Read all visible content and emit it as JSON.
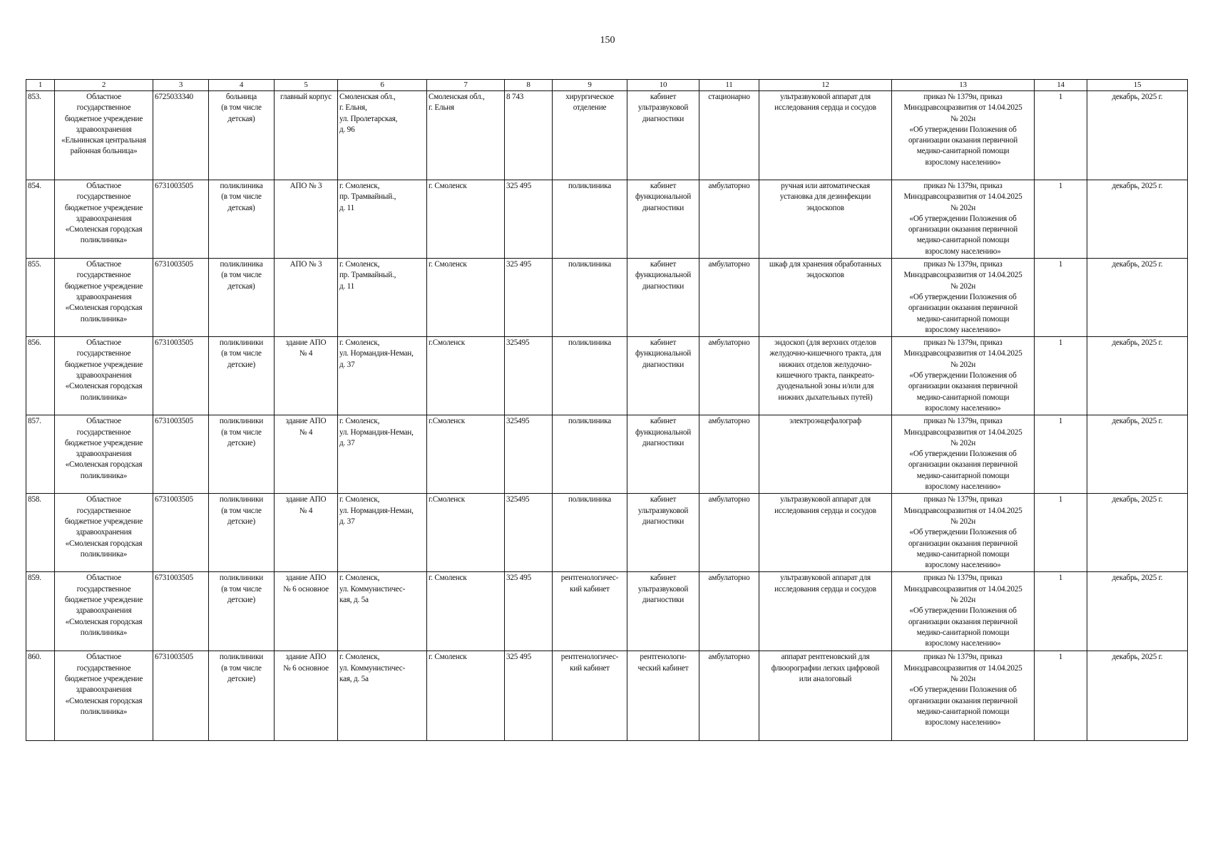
{
  "page_number": "150",
  "columns": [
    "1",
    "2",
    "3",
    "4",
    "5",
    "6",
    "7",
    "8",
    "9",
    "10",
    "11",
    "12",
    "13",
    "14",
    "15"
  ],
  "rows": [
    [
      "853.",
      "Областное\nгосударственное\nбюджетное учреждение\nздравоохранения\n«Ельнинская центральная\nрайонная больница»",
      "6725033340",
      "больница\n(в том числе\nдетская)",
      "главный корпус",
      "Смоленская обл.,\nг. Ельня,\nул. Пролетарская,\nд. 96",
      "Смоленская обл.,\nг. Ельня",
      "8 743",
      "хирургическое\nотделение",
      "кабинет\nультразвуковой\nдиагностики",
      "стационарно",
      "ультразвуковой аппарат для\nисследования сердца и сосудов",
      "приказ № 1379н, приказ\nМинздравсоцразвития от 14.04.2025\n№ 202н\n«Об утверждении Положения об\nорганизации оказания первичной\nмедико-санитарной помощи\nвзрослому населению»",
      "1",
      "декабрь, 2025 г."
    ],
    [
      "854.",
      "Областное\nгосударственное\nбюджетное учреждение\nздравоохранения\n«Смоленская городская\nполиклиника»",
      "6731003505",
      "поликлиника\n(в том числе\nдетская)",
      "АПО № 3",
      "г. Смоленск,\nпр. Трамвайный.,\nд. 11",
      "г. Смоленск",
      "325 495",
      "поликлиника",
      "кабинет\nфункциональной\nдиагностики",
      "амбулаторно",
      "ручная или автоматическая\nустановка для дезинфекции\nэндоскопов",
      "приказ № 1379н, приказ\nМинздравсоцразвития от 14.04.2025\n№ 202н\n«Об утверждении Положения об\nорганизации оказания первичной\nмедико-санитарной помощи\nвзрослому населению»",
      "1",
      "декабрь, 2025 г."
    ],
    [
      "855.",
      "Областное\nгосударственное\nбюджетное учреждение\nздравоохранения\n«Смоленская городская\nполиклиника»",
      "6731003505",
      "поликлиника\n(в том числе\nдетская)",
      "АПО № 3",
      "г. Смоленск,\nпр. Трамвайный.,\nд. 11",
      "г. Смоленск",
      "325 495",
      "поликлиника",
      "кабинет\nфункциональной\nдиагностики",
      "амбулаторно",
      "шкаф для хранения обработанных\nэндоскопов",
      "приказ № 1379н, приказ\nМинздравсоцразвития от 14.04.2025\n№ 202н\n«Об утверждении Положения об\nорганизации оказания первичной\nмедико-санитарной помощи\nвзрослому населению»",
      "1",
      "декабрь, 2025 г."
    ],
    [
      "856.",
      "Областное\nгосударственное\nбюджетное учреждение\nздравоохранения\n«Смоленская городская\nполиклиника»",
      "6731003505",
      "поликлиники\n(в том числе\nдетские)",
      "здание АПО\n№ 4",
      "г. Смоленск,\nул. Нормандия-Неман,\nд. 37",
      "г.Смоленск",
      "325495",
      "поликлиника",
      "кабинет\nфункциональной\nдиагностики",
      "амбулаторно",
      "эндоскоп (для верхних отделов\nжелудочно-кишечного тракта, для\nнижних отделов желудочно-\nкишечного тракта, панкреато-\nдуоденальной зоны и/или для\nнижних дыхательных путей)",
      "приказ № 1379н, приказ\nМинздравсоцразвития от 14.04.2025\n№ 202н\n«Об утверждении Положения об\nорганизации оказания первичной\nмедико-санитарной помощи\nвзрослому населению»",
      "1",
      "декабрь, 2025 г."
    ],
    [
      "857.",
      "Областное\nгосударственное\nбюджетное учреждение\nздравоохранения\n«Смоленская городская\nполиклиника»",
      "6731003505",
      "поликлиники\n(в том числе\nдетские)",
      "здание АПО\n№ 4",
      "г. Смоленск,\nул. Нормандия-Неман,\nд. 37",
      "г.Смоленск",
      "325495",
      "поликлиника",
      "кабинет\nфункциональной\nдиагностики",
      "амбулаторно",
      "электроэнцефалограф",
      "приказ № 1379н, приказ\nМинздравсоцразвития от 14.04.2025\n№ 202н\n«Об утверждении Положения об\nорганизации оказания первичной\nмедико-санитарной помощи\nвзрослому населению»",
      "1",
      "декабрь, 2025 г."
    ],
    [
      "858.",
      "Областное\nгосударственное\nбюджетное учреждение\nздравоохранения\n«Смоленская городская\nполиклиника»",
      "6731003505",
      "поликлиники\n(в том числе\nдетские)",
      "здание АПО\n№ 4",
      "г. Смоленск,\nул. Нормандия-Неман,\nд. 37",
      "г.Смоленск",
      "325495",
      "поликлиника",
      "кабинет\nультразвуковой\nдиагностики",
      "амбулаторно",
      "ультразвуковой аппарат для\nисследования сердца и сосудов",
      "приказ № 1379н, приказ\nМинздравсоцразвития от 14.04.2025\n№ 202н\n«Об утверждении Положения об\nорганизации оказания первичной\nмедико-санитарной помощи\nвзрослому населению»",
      "1",
      "декабрь, 2025 г."
    ],
    [
      "859.",
      "Областное\nгосударственное\nбюджетное учреждение\nздравоохранения\n«Смоленская городская\nполиклиника»",
      "6731003505",
      "поликлиники\n(в том числе\nдетские)",
      "здание АПО\n№ 6 основное",
      "г. Смоленск,\nул. Коммунистичес-\nкая, д. 5а",
      "г. Смоленск",
      "325 495",
      "рентгенологичес-\nкий кабинет",
      "кабинет\nультразвуковой\nдиагностики",
      "амбулаторно",
      "ультразвуковой аппарат для\nисследования сердца и сосудов",
      "приказ № 1379н, приказ\nМинздравсоцразвития от 14.04.2025\n№ 202н\n«Об утверждении Положения об\nорганизации оказания первичной\nмедико-санитарной помощи\nвзрослому населению»",
      "1",
      "декабрь, 2025 г."
    ],
    [
      "860.",
      "Областное\nгосударственное\nбюджетное учреждение\nздравоохранения\n«Смоленская городская\nполиклиника»",
      "6731003505",
      "поликлиники\n(в том числе\nдетские)",
      "здание АПО\n№ 6 основное",
      "г. Смоленск,\nул. Коммунистичес-\nкая, д. 5а",
      "г. Смоленск",
      "325 495",
      "рентгенологичес-\nкий кабинет",
      "рентгенологи-\nческий кабинет",
      "амбулаторно",
      "аппарат рентгеновский для\nфлюорографии легких цифровой\nили аналоговый",
      "приказ № 1379н, приказ\nМинздравсоцразвития от 14.04.2025\n№ 202н\n«Об утверждении Положения об\nорганизации оказания первичной\nмедико-санитарной помощи\nвзрослому населению»",
      "1",
      "декабрь, 2025 г."
    ]
  ]
}
